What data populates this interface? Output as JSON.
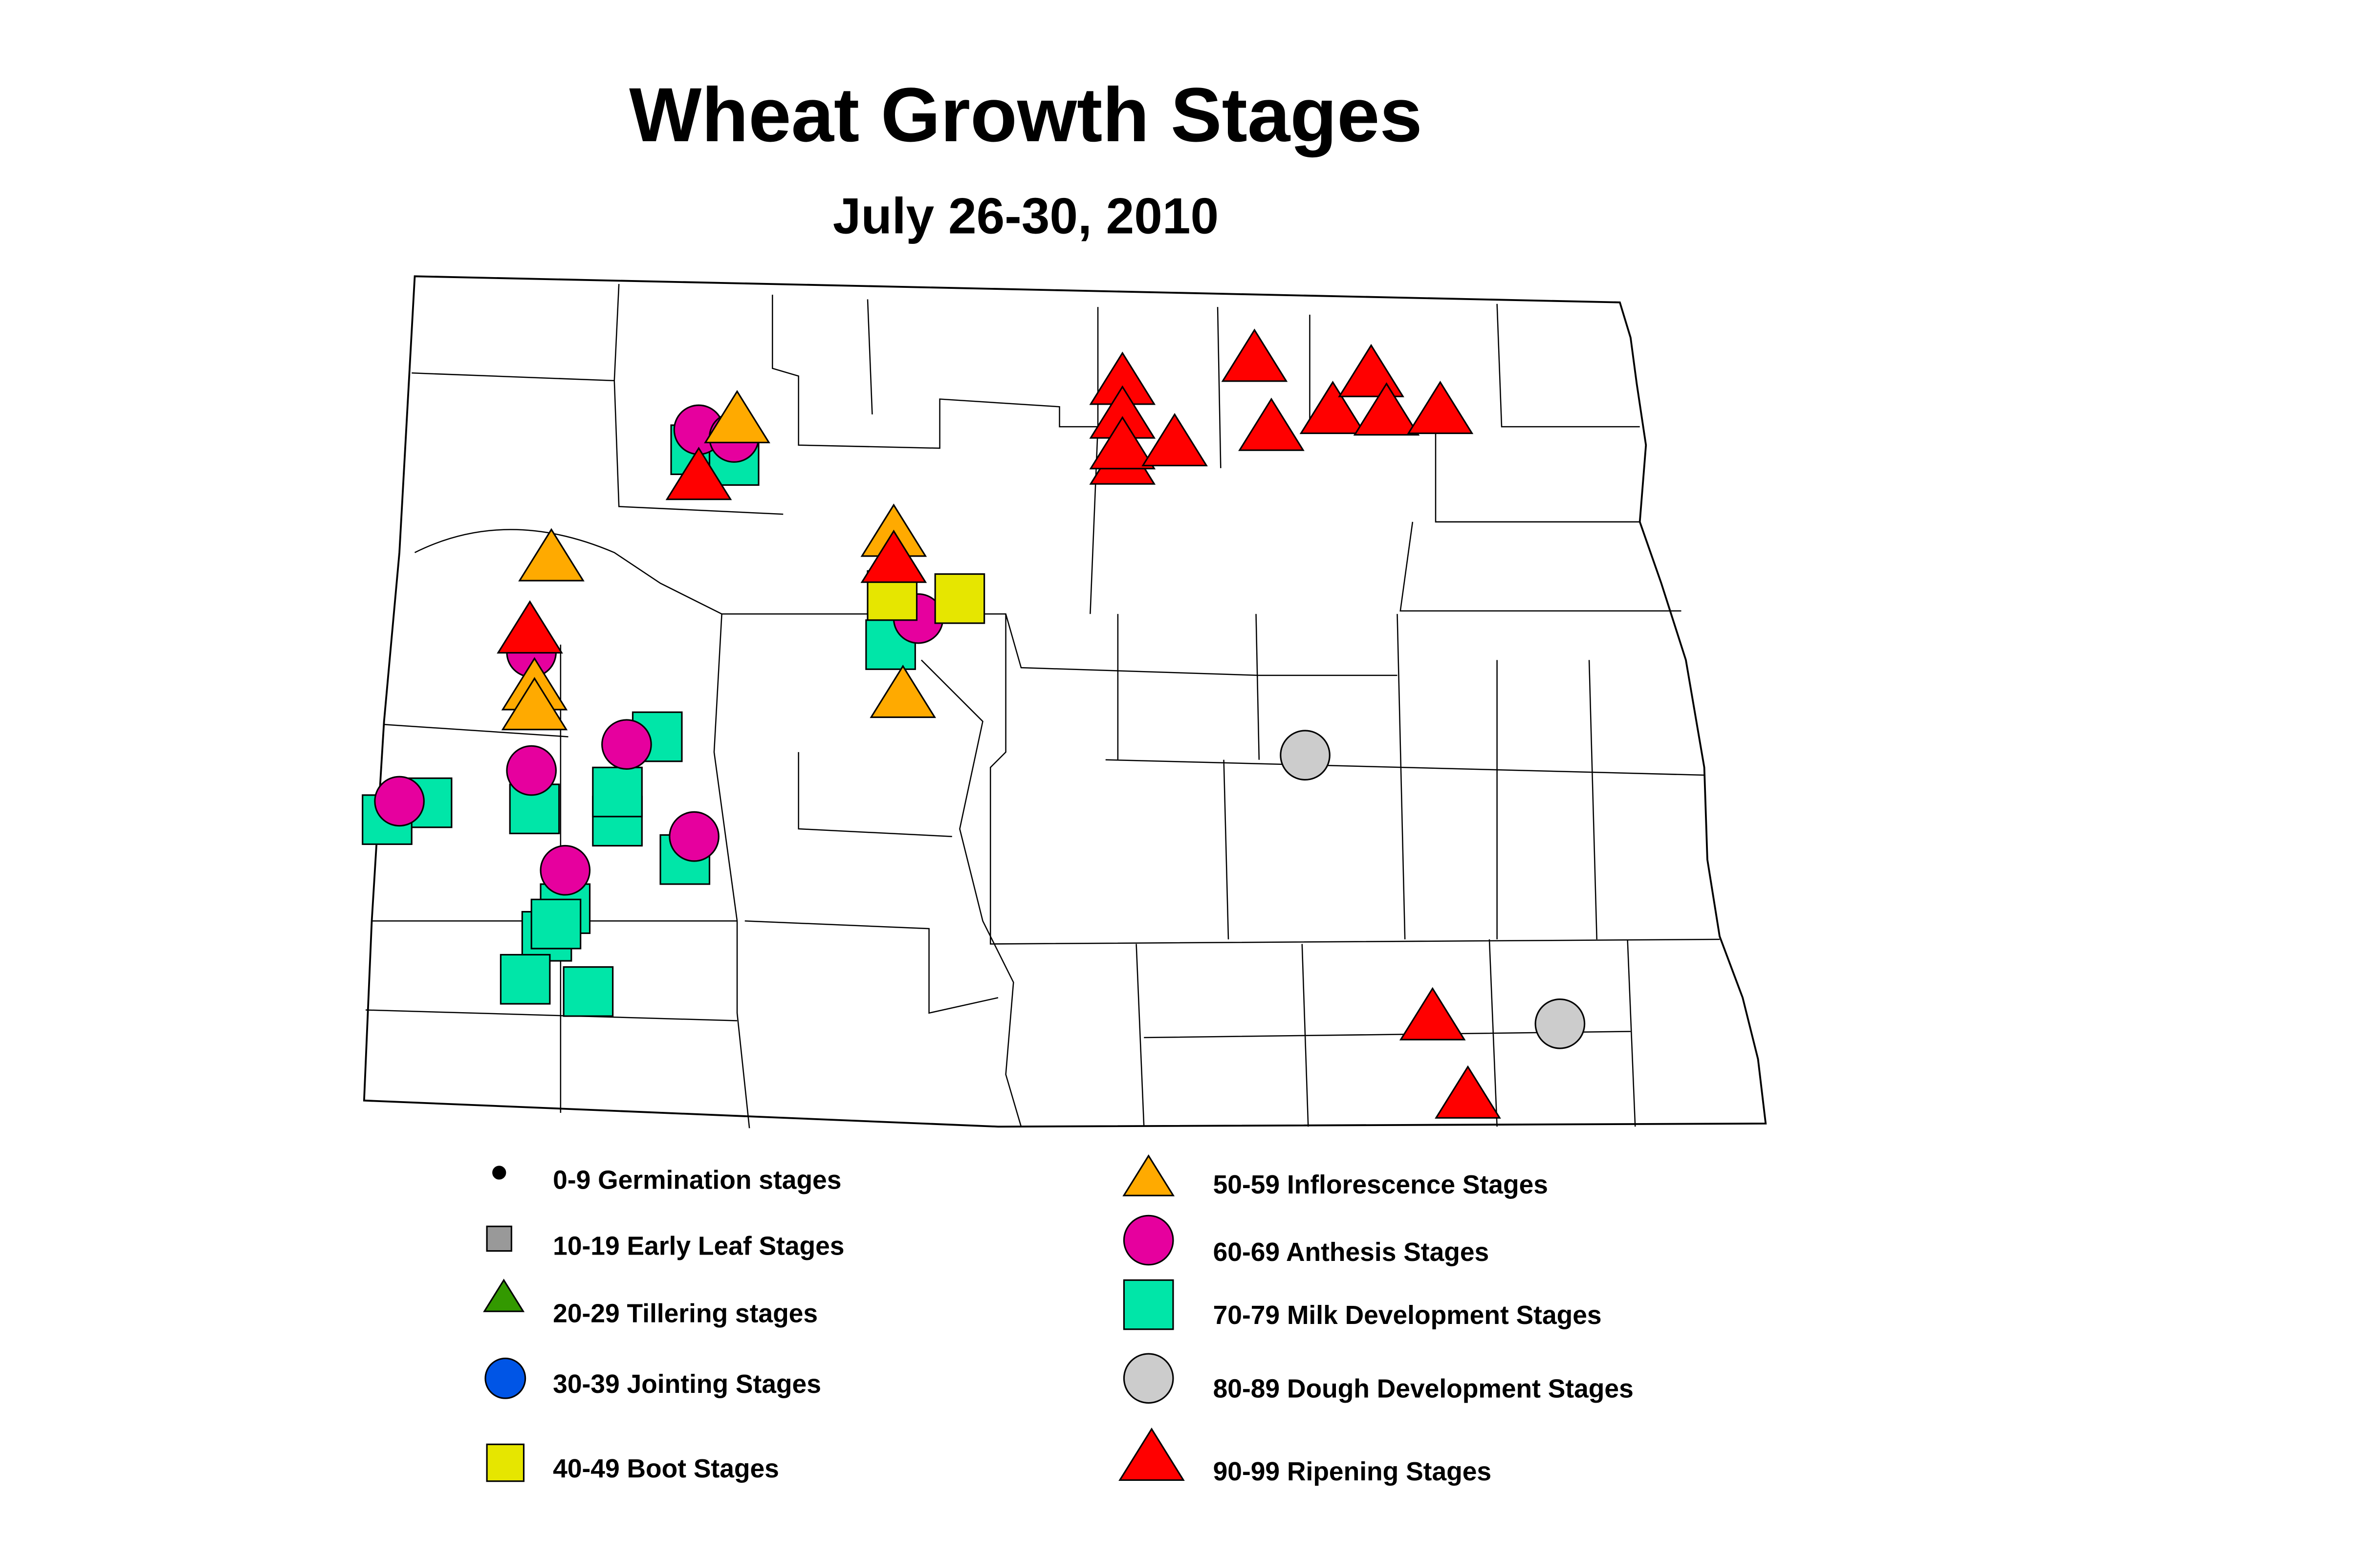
{
  "title": "Wheat Growth Stages",
  "subtitle": "July 26-30, 2010",
  "legend": [
    {
      "label": "0-9 Germination stages",
      "color": "#000000",
      "marker": "circle"
    },
    {
      "label": "10-19 Early Leaf Stages",
      "color": "#999999",
      "marker": "square"
    },
    {
      "label": "20-29 Tillering stages",
      "color": "#339900",
      "marker": "triangle"
    },
    {
      "label": "30-39 Jointing Stages",
      "color": "#0055e6",
      "marker": "circle"
    },
    {
      "label": "40-49 Boot Stages",
      "color": "#e6e600",
      "marker": "square"
    },
    {
      "label": "50-59 Inflorescence Stages",
      "color": "#ffaa00",
      "marker": "triangle"
    },
    {
      "label": "60-69 Anthesis Stages",
      "color": "#e6009e",
      "marker": "circle"
    },
    {
      "label": "70-79 Milk Development Stages",
      "color": "#00e6a8",
      "marker": "square"
    },
    {
      "label": "80-89 Dough Development Stages",
      "color": "#cccccc",
      "marker": "circle"
    },
    {
      "label": "90-99 Ripening Stages",
      "color": "#ff0000",
      "marker": "triangle"
    }
  ]
}
